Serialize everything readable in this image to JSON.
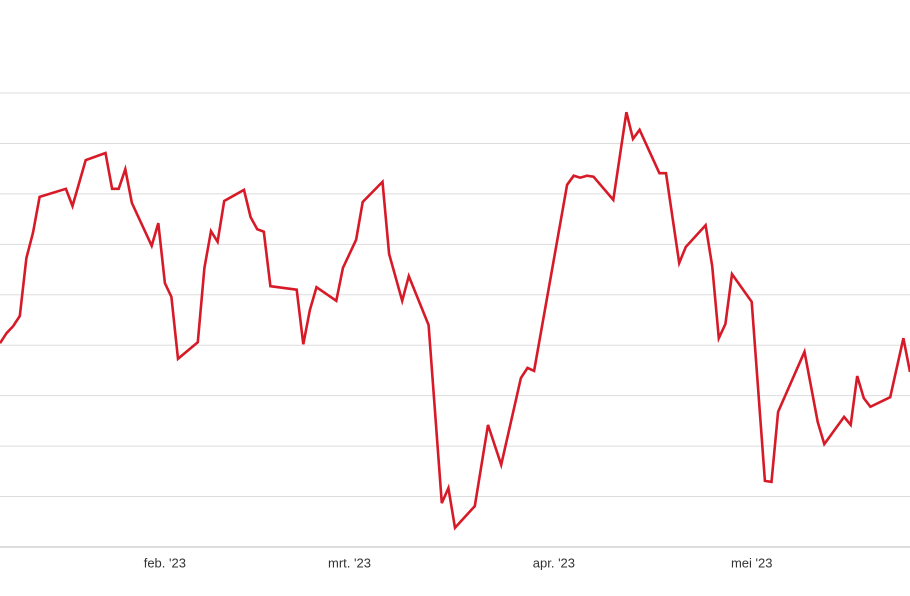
{
  "chart_data": {
    "type": "line",
    "color": "#d71a28",
    "grid": true,
    "x": [
      7,
      8,
      9,
      10,
      11,
      12,
      13,
      17,
      18,
      20,
      23,
      24,
      25,
      26,
      27,
      30,
      31,
      32,
      33,
      34,
      37,
      38,
      39,
      40,
      41,
      44,
      45,
      46,
      47,
      48,
      52,
      53,
      54,
      55,
      58,
      59,
      61,
      62,
      65,
      66,
      68,
      69,
      72,
      74,
      75,
      76,
      79,
      81,
      83,
      86,
      87,
      88,
      93,
      94,
      95,
      96,
      97,
      100,
      102,
      103,
      104,
      107,
      108,
      110,
      111,
      114,
      115,
      116,
      117,
      118,
      121,
      123,
      124,
      125,
      129,
      131,
      132,
      135,
      136,
      137,
      138,
      139,
      142,
      144,
      145
    ],
    "values": [
      4.04,
      4.24,
      4.38,
      4.58,
      5.73,
      6.23,
      6.94,
      7.1,
      6.76,
      7.67,
      7.81,
      7.1,
      7.1,
      7.49,
      6.82,
      5.97,
      6.42,
      5.23,
      4.96,
      3.73,
      4.06,
      5.53,
      6.26,
      6.05,
      6.86,
      7.08,
      6.54,
      6.3,
      6.25,
      5.17,
      5.1,
      4.02,
      4.7,
      5.15,
      4.88,
      5.53,
      6.09,
      6.84,
      7.24,
      5.81,
      4.88,
      5.37,
      4.4,
      0.87,
      1.17,
      0.38,
      0.81,
      2.42,
      1.63,
      3.35,
      3.55,
      3.49,
      7.18,
      7.36,
      7.32,
      7.36,
      7.34,
      6.88,
      8.62,
      8.09,
      8.27,
      7.41,
      7.41,
      5.63,
      5.95,
      6.38,
      5.57,
      4.14,
      4.42,
      5.41,
      4.86,
      1.31,
      1.29,
      2.68,
      3.87,
      2.48,
      2.04,
      2.58,
      2.42,
      3.39,
      2.95,
      2.78,
      2.97,
      4.14,
      3.47
    ],
    "xlim": [
      7,
      145
    ],
    "xticks": [
      {
        "value": 32,
        "label": "feb. '23"
      },
      {
        "value": 60,
        "label": "mrt. '23"
      },
      {
        "value": 91,
        "label": "apr. '23"
      },
      {
        "value": 121,
        "label": "mei '23"
      }
    ],
    "ylim": [
      0,
      9
    ],
    "yticks": [
      0,
      1,
      2,
      3,
      4,
      5,
      6,
      7,
      8,
      9
    ]
  }
}
